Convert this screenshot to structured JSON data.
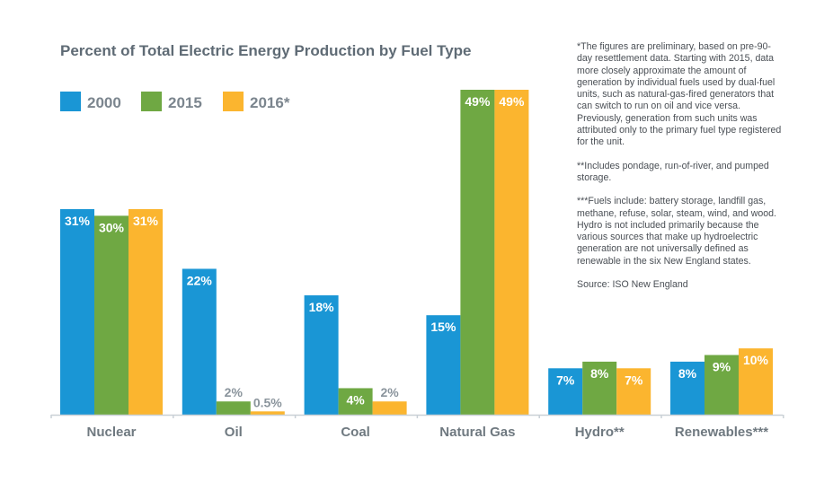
{
  "chart_data": {
    "type": "bar",
    "title": "Percent of Total Electric Energy Production by Fuel Type",
    "categories": [
      "Nuclear",
      "Oil",
      "Coal",
      "Natural Gas",
      "Hydro**",
      "Renewables***"
    ],
    "series": [
      {
        "name": "2000",
        "color": "#1a96d5",
        "values": [
          31,
          22,
          18,
          15,
          7,
          8
        ],
        "labels": [
          "31%",
          "22%",
          "18%",
          "15%",
          "7%",
          "8%"
        ]
      },
      {
        "name": "2015",
        "color": "#6fa843",
        "values": [
          30,
          2,
          4,
          49,
          8,
          9
        ],
        "labels": [
          "30%",
          "2%",
          "4%",
          "49%",
          "8%",
          "9%"
        ]
      },
      {
        "name": "2016*",
        "color": "#fbb52f",
        "values": [
          31,
          0.5,
          2,
          49,
          7,
          10
        ],
        "labels": [
          "31%",
          "0.5%",
          "2%",
          "49%",
          "7%",
          "10%"
        ]
      }
    ],
    "ylim": [
      0,
      49
    ],
    "grid": false,
    "legend": "top-left",
    "xlabel": "",
    "ylabel": ""
  },
  "notes": [
    "*The figures are preliminary, based on pre-90-day resettlement data. Starting with 2015, data more closely approximate the amount of generation by individual fuels used by dual-fuel units, such as natural-gas-fired generators that can switch to run on oil and vice versa. Previously, generation from such units was attributed only to the primary fuel type registered for the unit.",
    "**Includes pondage, run-of-river, and pumped storage.",
    "***Fuels include: battery storage, landfill gas, methane, refuse, solar, steam, wind, and wood. Hydro is not included primarily because the various sources that make up hydroelectric generation are not universally defined as renewable in the six New England states.",
    "Source: ISO New England"
  ],
  "colors": {
    "text": "#5f6b75",
    "axis": "#c9d0d6"
  }
}
